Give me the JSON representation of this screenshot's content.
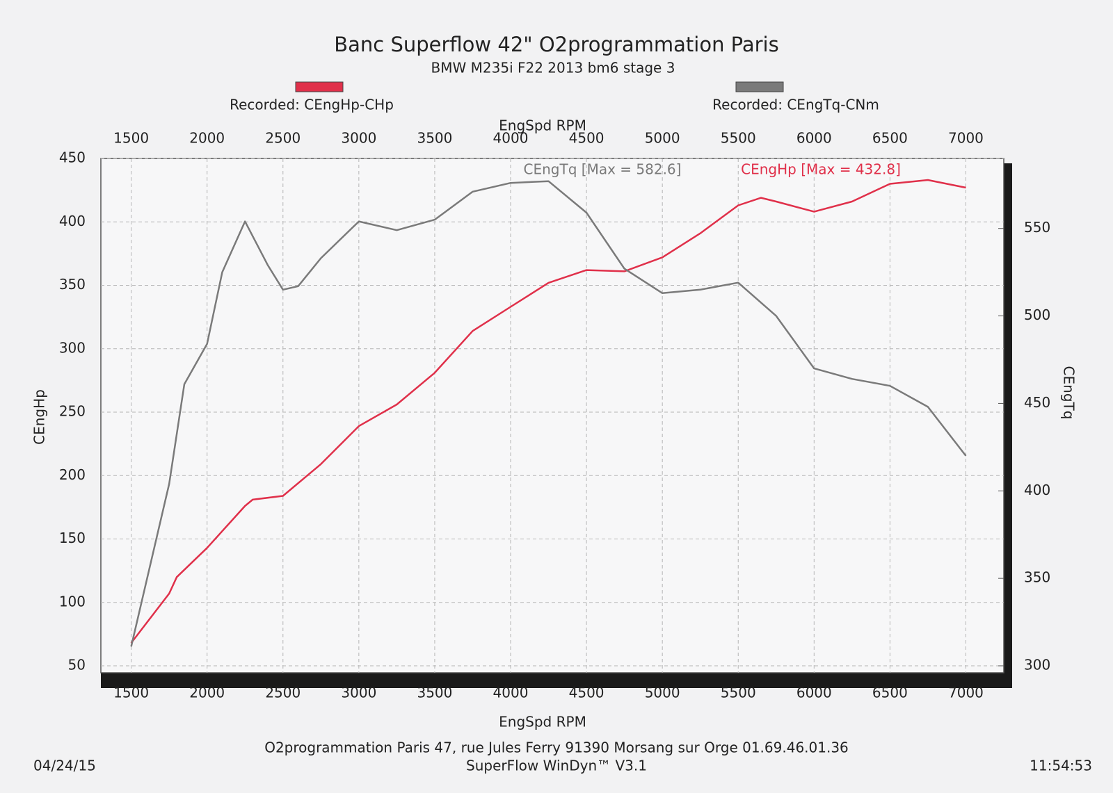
{
  "chart_data": {
    "type": "line",
    "title": "Banc Superflow 42\" O2programmation Paris",
    "subtitle": "BMW M235i F22 2013 bm6 stage 3",
    "xlabel": "EngSpd RPM",
    "ylabel": "CEngHp",
    "y2label": "CEngTq",
    "xlim": [
      1300,
      7250
    ],
    "xticks": [
      1500,
      2000,
      2500,
      3000,
      3500,
      4000,
      4500,
      5000,
      5500,
      6000,
      6500,
      7000
    ],
    "ylim": [
      50,
      450
    ],
    "yticks": [
      50,
      100,
      150,
      200,
      250,
      300,
      350,
      400,
      450
    ],
    "y2lim": [
      300,
      590
    ],
    "y2ticks": [
      300,
      350,
      400,
      450,
      500,
      550
    ],
    "grid": true,
    "series": [
      {
        "name": "Recorded: CEngHp-CHp",
        "color": "#e0304a",
        "annotation": "CEngHp [Max = 432.8]",
        "x": [
          1500,
          1750,
          1800,
          2000,
          2250,
          2300,
          2500,
          2750,
          3000,
          3250,
          3500,
          3750,
          4000,
          4250,
          4500,
          4750,
          5000,
          5250,
          5500,
          5650,
          5750,
          6000,
          6250,
          6500,
          6750,
          7000
        ],
        "values": [
          68,
          107,
          120,
          143,
          176,
          181,
          184,
          209,
          239,
          256,
          281,
          314,
          333,
          352,
          362,
          361,
          372,
          391,
          413,
          419,
          416,
          408,
          416,
          430,
          433,
          427
        ]
      },
      {
        "name": "Recorded: CEngTq-CNm",
        "color": "#7a7a7a",
        "axis": "y2",
        "annotation": "CEngTq [Max = 582.6]",
        "x": [
          1500,
          1750,
          1850,
          2000,
          2100,
          2250,
          2400,
          2500,
          2600,
          2750,
          3000,
          3250,
          3500,
          3750,
          4000,
          4250,
          4500,
          4750,
          5000,
          5250,
          5500,
          5750,
          6000,
          6250,
          6500,
          6750,
          7000
        ],
        "values": [
          311,
          404,
          461,
          484,
          525,
          554,
          529,
          515,
          517,
          533,
          554,
          549,
          555,
          571,
          576,
          577,
          559,
          527,
          513,
          515,
          519,
          500,
          470,
          464,
          460,
          448,
          420
        ]
      }
    ],
    "footer": [
      "O2programmation Paris 47, rue Jules Ferry 91390 Morsang sur Orge 01.69.46.01.36",
      "SuperFlow WinDyn™ V3.1"
    ],
    "date": "04/24/15",
    "time": "11:54:53"
  }
}
